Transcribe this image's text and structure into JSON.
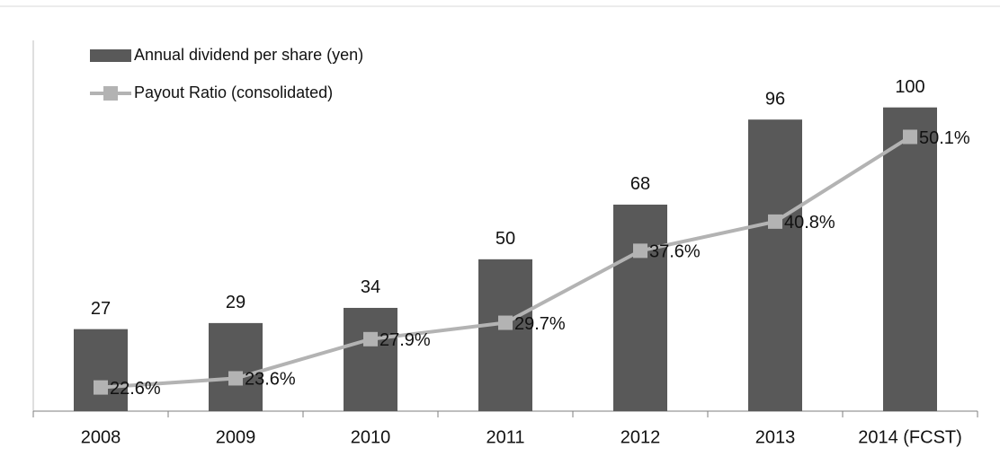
{
  "chart_data": {
    "type": "bar_line",
    "categories": [
      "2008",
      "2009",
      "2010",
      "2011",
      "2012",
      "2013",
      "2014 (FCST)"
    ],
    "series": [
      {
        "name": "Annual dividend per share (yen)",
        "type": "bar",
        "color": "#595959",
        "values": [
          27,
          29,
          34,
          50,
          68,
          96,
          100
        ]
      },
      {
        "name": "Payout Ratio (consolidated)",
        "type": "line",
        "axis": "y2",
        "color": "#b3b3b3",
        "values": [
          22.6,
          23.6,
          27.9,
          29.7,
          37.6,
          40.8,
          50.1
        ],
        "value_labels": [
          "22.6%",
          "23.6%",
          "27.9%",
          "29.7%",
          "37.6%",
          "40.8%",
          "50.1%"
        ]
      }
    ],
    "ylim": [
      0,
      120
    ],
    "y2lim": [
      20,
      60
    ]
  }
}
